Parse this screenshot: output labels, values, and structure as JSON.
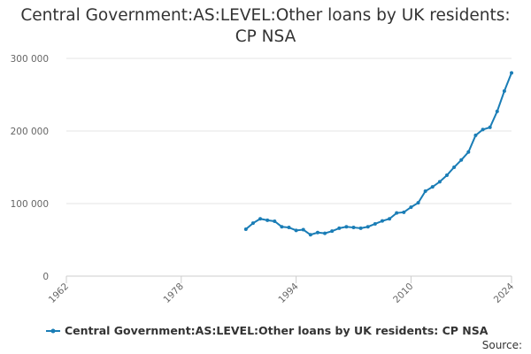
{
  "chart_data": {
    "type": "line",
    "title": "Central Government:AS:LEVEL:Other loans by UK residents: CP NSA",
    "x": [
      1987,
      1988,
      1989,
      1990,
      1991,
      1992,
      1993,
      1994,
      1995,
      1996,
      1997,
      1998,
      1999,
      2000,
      2001,
      2002,
      2003,
      2004,
      2005,
      2006,
      2007,
      2008,
      2009,
      2010,
      2011,
      2012,
      2013,
      2014,
      2015,
      2016,
      2017,
      2018,
      2019,
      2020,
      2021,
      2022,
      2023,
      2024
    ],
    "series": [
      {
        "name": "Central Government:AS:LEVEL:Other loans by UK residents: CP NSA",
        "color": "#1a7db6",
        "values": [
          64600,
          73000,
          79000,
          77000,
          75600,
          68000,
          67000,
          63000,
          64000,
          57000,
          60000,
          59000,
          62000,
          66000,
          68000,
          67000,
          66000,
          68000,
          72000,
          76000,
          79000,
          87000,
          88000,
          95000,
          101000,
          117000,
          123000,
          130000,
          139000,
          150000,
          160000,
          171000,
          194000,
          202000,
          205000,
          227000,
          255000,
          280000
        ]
      }
    ],
    "xlim": [
      1962,
      2024
    ],
    "xticks": [
      1962,
      1978,
      1994,
      2010,
      2024
    ],
    "ylim": [
      0,
      300000
    ],
    "yticks": [
      0,
      {
        "value": 100000,
        "label": "100 000"
      },
      {
        "value": 200000,
        "label": "200 000"
      },
      {
        "value": 300000,
        "label": "300 000"
      }
    ],
    "grid": true,
    "legend": "bottom",
    "source": "Source:"
  }
}
